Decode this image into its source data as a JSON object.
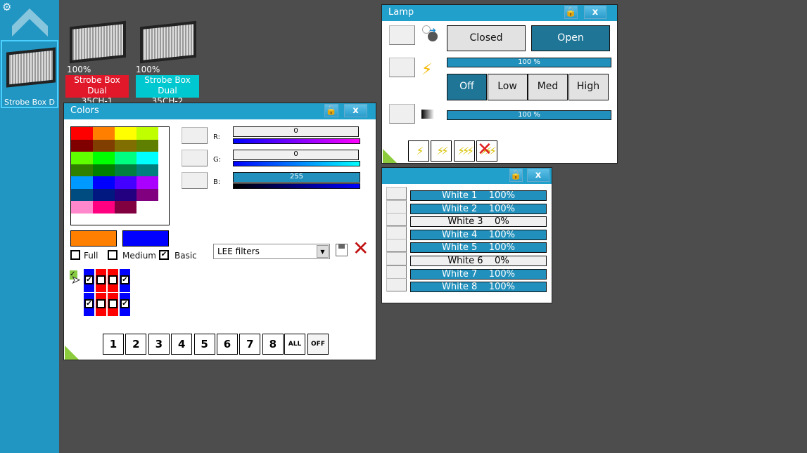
{
  "sidebar": {
    "selected_label": "Strobe Box D"
  },
  "fixtures": [
    {
      "percent": "100%",
      "name": "Strobe Box Dual",
      "channel": "35CH-1",
      "color": "#e0182a"
    },
    {
      "percent": "100%",
      "name": "Strobe Box Dual",
      "channel": "35CH-2",
      "color": "#00c8d0"
    }
  ],
  "colors_window": {
    "title": "Colors",
    "close": "x",
    "palette": [
      "#ff0000",
      "#ff8000",
      "#ffff00",
      "#bfff00",
      "#800000",
      "#803f00",
      "#806f00",
      "#5f7f00",
      "#5fff00",
      "#00ff00",
      "#00ff80",
      "#00ffff",
      "#2f7f00",
      "#007f00",
      "#007f3f",
      "#007f7f",
      "#0099ff",
      "#0000ff",
      "#4400ff",
      "#aa00ff",
      "#004c80",
      "#001880",
      "#220080",
      "#800080",
      "#ff88cc",
      "#ff0080",
      "#800040",
      "#ffffff"
    ],
    "r_label": "R:",
    "g_label": "G:",
    "b_label": "B:",
    "r_value": "0",
    "g_value": "0",
    "b_value": "255",
    "swatch1": "#ff8000",
    "swatch2": "#0000ff",
    "full_label": "Full",
    "medium_label": "Medium",
    "basic_label": "Basic",
    "full_checked": false,
    "medium_checked": false,
    "basic_checked": true,
    "filter_select": "LEE filters",
    "grid_checks": [
      true,
      false,
      false,
      true,
      true,
      false,
      false,
      true
    ],
    "num_buttons": [
      "1",
      "2",
      "3",
      "4",
      "5",
      "6",
      "7",
      "8",
      "ALL",
      "OFF"
    ]
  },
  "lamp_window": {
    "title": "Lamp",
    "close": "x",
    "closed_label": "Closed",
    "open_label": "Open",
    "bar1": "100 %",
    "bar2": "100 %",
    "levels": [
      "Off",
      "Low",
      "Med",
      "High"
    ],
    "selected_level": "Off"
  },
  "white_window": {
    "close": "x",
    "rows": [
      {
        "text": "White 1    100%",
        "on": true
      },
      {
        "text": "White 2    100%",
        "on": true
      },
      {
        "text": "White 3    0%",
        "on": false
      },
      {
        "text": "White 4    100%",
        "on": true
      },
      {
        "text": "White 5    100%",
        "on": true
      },
      {
        "text": "White 6    0%",
        "on": false
      },
      {
        "text": "White 7    100%",
        "on": true
      },
      {
        "text": "White 8    100%",
        "on": true
      }
    ]
  }
}
